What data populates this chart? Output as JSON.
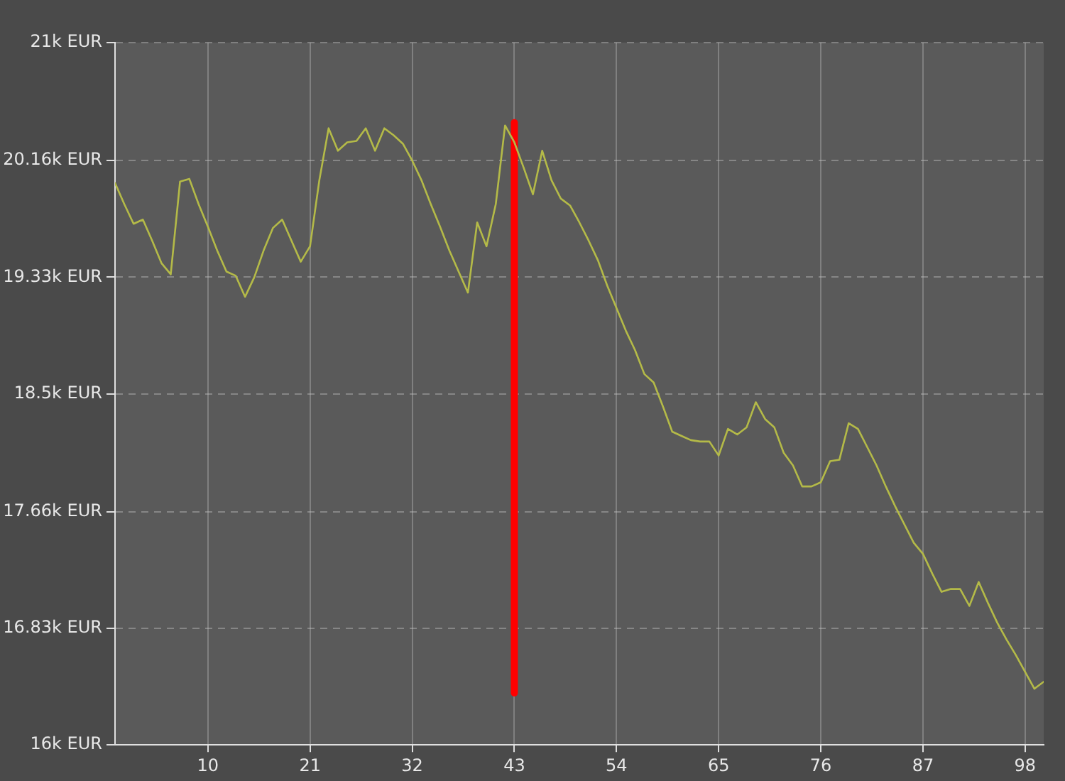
{
  "chart_data": {
    "type": "line",
    "xlim": [
      0,
      100
    ],
    "xticks": [
      10,
      21,
      32,
      43,
      54,
      65,
      76,
      87,
      98
    ],
    "ylim": [
      16,
      21
    ],
    "yticks": [
      {
        "value": 16,
        "label": "16k EUR"
      },
      {
        "value": 16.83,
        "label": "16.83k EUR"
      },
      {
        "value": 17.66,
        "label": "17.66k EUR"
      },
      {
        "value": 18.5,
        "label": "18.5k EUR"
      },
      {
        "value": 19.33,
        "label": "19.33k EUR"
      },
      {
        "value": 20.16,
        "label": "20.16k EUR"
      },
      {
        "value": 21,
        "label": "21k EUR"
      }
    ],
    "grid": true,
    "legend": false,
    "marker": "none",
    "line_style": "solid",
    "x": [
      0,
      1,
      2,
      3,
      4,
      5,
      6,
      7,
      8,
      9,
      10,
      11,
      12,
      13,
      14,
      15,
      16,
      17,
      18,
      19,
      20,
      21,
      22,
      23,
      24,
      25,
      26,
      27,
      28,
      29,
      30,
      31,
      32,
      33,
      34,
      35,
      36,
      37,
      38,
      39,
      40,
      41,
      42,
      43,
      44,
      45,
      46,
      47,
      48,
      49,
      50,
      51,
      52,
      53,
      54,
      55,
      56,
      57,
      58,
      59,
      60,
      61,
      62,
      63,
      64,
      65,
      66,
      67,
      68,
      69,
      70,
      71,
      72,
      73,
      74,
      75,
      76,
      77,
      78,
      79,
      80,
      81,
      82,
      83,
      84,
      85,
      86,
      87,
      88,
      89,
      90,
      91,
      92,
      93,
      94,
      95,
      96,
      97,
      98,
      99,
      100
    ],
    "series": [
      {
        "color": "#b4ba48",
        "values": [
          20.0,
          19.85,
          19.71,
          19.74,
          19.59,
          19.43,
          19.35,
          20.01,
          20.03,
          19.85,
          19.69,
          19.52,
          19.37,
          19.34,
          19.19,
          19.33,
          19.52,
          19.68,
          19.74,
          19.59,
          19.44,
          19.55,
          20.02,
          20.39,
          20.23,
          20.29,
          20.3,
          20.39,
          20.23,
          20.39,
          20.34,
          20.28,
          20.16,
          20.02,
          19.85,
          19.69,
          19.52,
          19.37,
          19.22,
          19.72,
          19.55,
          19.85,
          20.41,
          20.29,
          20.11,
          19.92,
          20.23,
          20.02,
          19.89,
          19.84,
          19.72,
          19.59,
          19.45,
          19.27,
          19.11,
          18.95,
          18.81,
          18.64,
          18.58,
          18.41,
          18.23,
          18.2,
          18.17,
          18.16,
          18.16,
          18.06,
          18.25,
          18.21,
          18.26,
          18.44,
          18.32,
          18.26,
          18.08,
          17.99,
          17.84,
          17.84,
          17.87,
          18.02,
          18.03,
          18.29,
          18.25,
          18.12,
          17.99,
          17.84,
          17.7,
          17.57,
          17.44,
          17.36,
          17.22,
          17.09,
          17.11,
          17.11,
          16.99,
          17.16,
          17.01,
          16.87,
          16.75,
          16.64,
          16.52,
          16.4,
          16.45
        ]
      },
      {
        "color": "#ff0000",
        "x": [
          43,
          43
        ],
        "values": [
          16.37,
          20.43
        ]
      }
    ]
  }
}
